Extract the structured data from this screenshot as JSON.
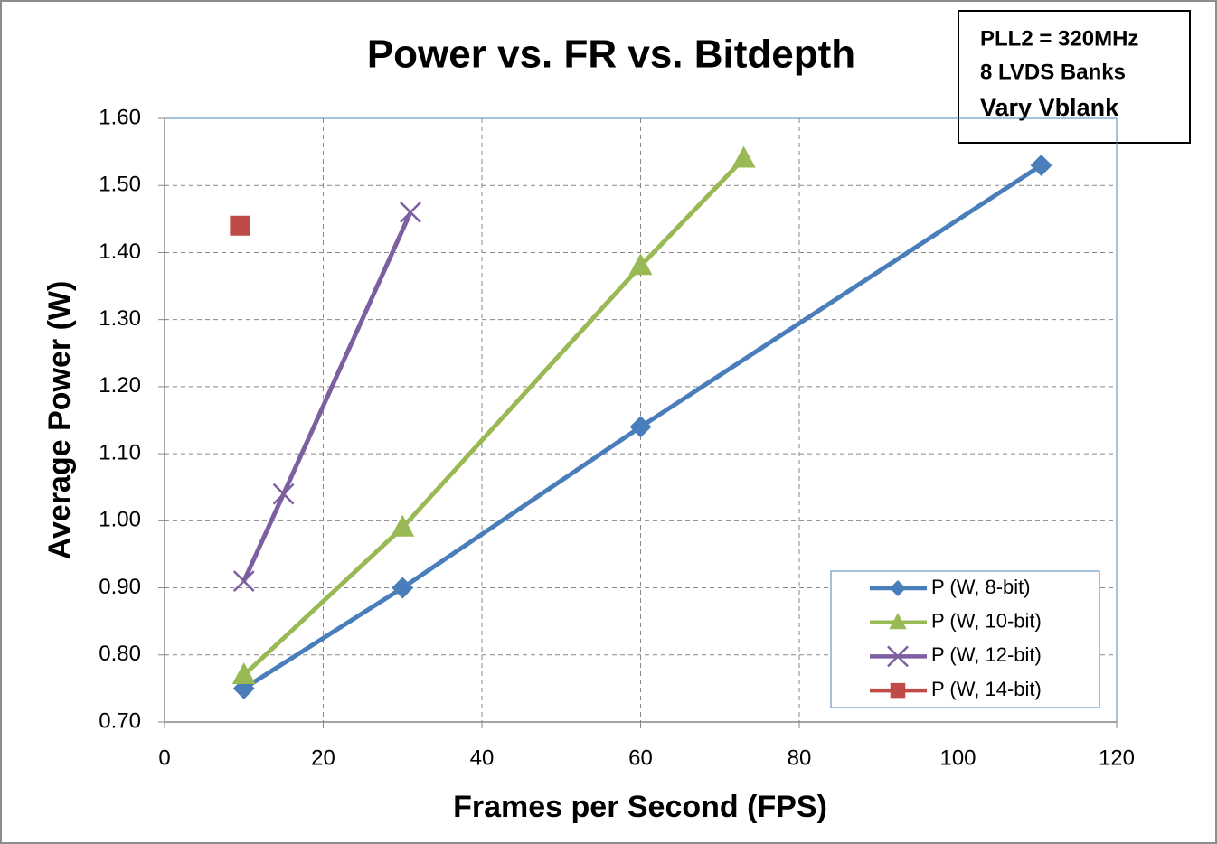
{
  "chart_data": {
    "type": "line",
    "title": "Power vs. FR vs. Bitdepth",
    "xlabel": "Frames per Second (FPS)",
    "ylabel": "Average Power (W)",
    "annotation": [
      "PLL2 = 320MHz",
      "8 LVDS Banks",
      "Vary Vblank"
    ],
    "xlim": [
      0,
      120
    ],
    "xticks": [
      0,
      20,
      40,
      60,
      80,
      100,
      120
    ],
    "ylim": [
      0.7,
      1.6
    ],
    "yticks": [
      {
        "value": 0.7,
        "label": "0.70"
      },
      {
        "value": 0.8,
        "label": "0.80"
      },
      {
        "value": 0.9,
        "label": "0.90"
      },
      {
        "value": 1.0,
        "label": "1.00"
      },
      {
        "value": 1.1,
        "label": "1.10"
      },
      {
        "value": 1.2,
        "label": "1.20"
      },
      {
        "value": 1.3,
        "label": "1.30"
      },
      {
        "value": 1.4,
        "label": "1.40"
      },
      {
        "value": 1.5,
        "label": "1.50"
      },
      {
        "value": 1.6,
        "label": "1.60"
      }
    ],
    "grid": true,
    "legend": "lower right",
    "series": [
      {
        "name": "P (W, 8-bit)",
        "color": "#4a7ebb",
        "marker": "diamond",
        "x": [
          10,
          30,
          60,
          110.5
        ],
        "values": [
          0.75,
          0.9,
          1.14,
          1.53
        ]
      },
      {
        "name": "P (W, 10-bit)",
        "color": "#98b954",
        "marker": "triangle",
        "x": [
          10,
          30,
          60,
          73
        ],
        "values": [
          0.77,
          0.99,
          1.38,
          1.54
        ]
      },
      {
        "name": "P (W, 12-bit)",
        "color": "#7d5fa0",
        "marker": "x",
        "x": [
          10,
          15,
          31
        ],
        "values": [
          0.91,
          1.04,
          1.46
        ]
      },
      {
        "name": "P (W, 14-bit)",
        "color": "#be4b48",
        "marker": "square",
        "x": [
          9.5
        ],
        "values": [
          1.44
        ]
      }
    ]
  }
}
